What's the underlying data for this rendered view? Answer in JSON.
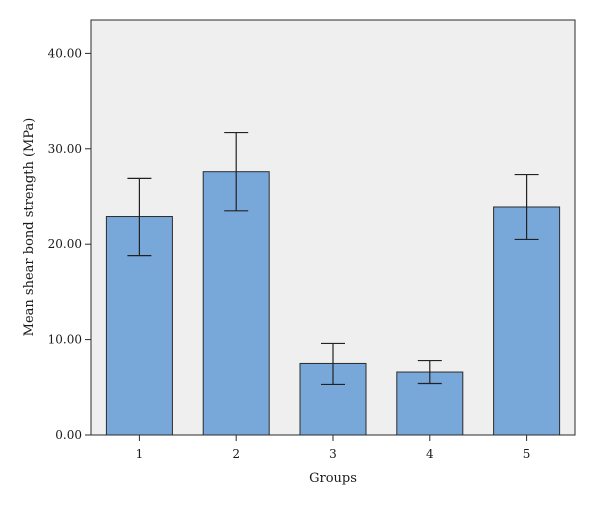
{
  "chart_data": {
    "type": "bar",
    "title": "",
    "xlabel": "Groups",
    "ylabel": "Mean shear bond strength (MPa)",
    "categories": [
      "1",
      "2",
      "3",
      "4",
      "5"
    ],
    "values": [
      22.9,
      27.6,
      7.5,
      6.6,
      23.9
    ],
    "error_bars": [
      {
        "low": 18.8,
        "high": 26.9
      },
      {
        "low": 23.5,
        "high": 31.7
      },
      {
        "low": 5.3,
        "high": 9.6
      },
      {
        "low": 5.4,
        "high": 7.8
      },
      {
        "low": 20.5,
        "high": 27.3
      }
    ],
    "ylim": [
      0,
      43.5
    ],
    "yticks": [
      {
        "value": 0,
        "label": "0.00"
      },
      {
        "value": 10,
        "label": "10.00"
      },
      {
        "value": 20,
        "label": "20.00"
      },
      {
        "value": 30,
        "label": "30.00"
      },
      {
        "value": 40,
        "label": "40.00"
      }
    ],
    "grid": false,
    "colors": {
      "bar_fill": "#78A8DA",
      "bar_stroke": "#2b2b2b",
      "plot_background": "#EFEFEF",
      "error_bar": "#222222"
    }
  }
}
